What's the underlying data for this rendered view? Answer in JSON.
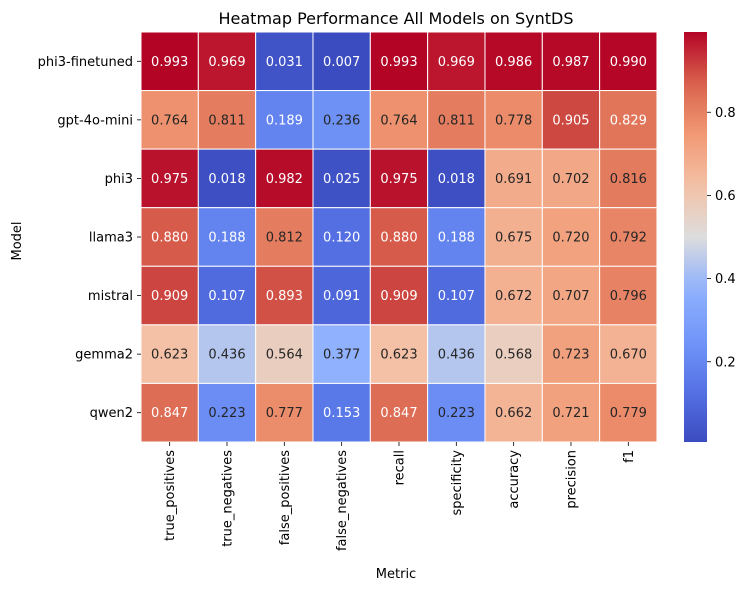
{
  "chart_data": {
    "type": "heatmap",
    "title": "Heatmap Performance All Models on SyntDS",
    "xlabel": "Metric",
    "ylabel": "Model",
    "x_categories": [
      "true_positives",
      "true_negatives",
      "false_positives",
      "false_negatives",
      "recall",
      "specificity",
      "accuracy",
      "precision",
      "f1"
    ],
    "y_categories": [
      "phi3-finetuned",
      "gpt-4o-mini",
      "phi3",
      "llama3",
      "mistral",
      "gemma2",
      "qwen2"
    ],
    "values": [
      [
        0.993,
        0.969,
        0.031,
        0.007,
        0.993,
        0.969,
        0.986,
        0.987,
        0.99
      ],
      [
        0.764,
        0.811,
        0.189,
        0.236,
        0.764,
        0.811,
        0.778,
        0.905,
        0.829
      ],
      [
        0.975,
        0.018,
        0.982,
        0.025,
        0.975,
        0.018,
        0.691,
        0.702,
        0.816
      ],
      [
        0.88,
        0.188,
        0.812,
        0.12,
        0.88,
        0.188,
        0.675,
        0.72,
        0.792
      ],
      [
        0.909,
        0.107,
        0.893,
        0.091,
        0.909,
        0.107,
        0.672,
        0.707,
        0.796
      ],
      [
        0.623,
        0.436,
        0.564,
        0.377,
        0.623,
        0.436,
        0.568,
        0.723,
        0.67
      ],
      [
        0.847,
        0.223,
        0.777,
        0.153,
        0.847,
        0.223,
        0.662,
        0.721,
        0.779
      ]
    ],
    "value_format": "3 decimals",
    "colormap": "coolwarm",
    "vmin": 0.007,
    "vmax": 0.993,
    "colorbar_ticks": [
      0.2,
      0.4,
      0.6,
      0.8
    ],
    "colorbar_tick_labels": [
      "0.2",
      "0.4",
      "0.6",
      "0.8"
    ],
    "cell_border_color": "#ffffff"
  }
}
